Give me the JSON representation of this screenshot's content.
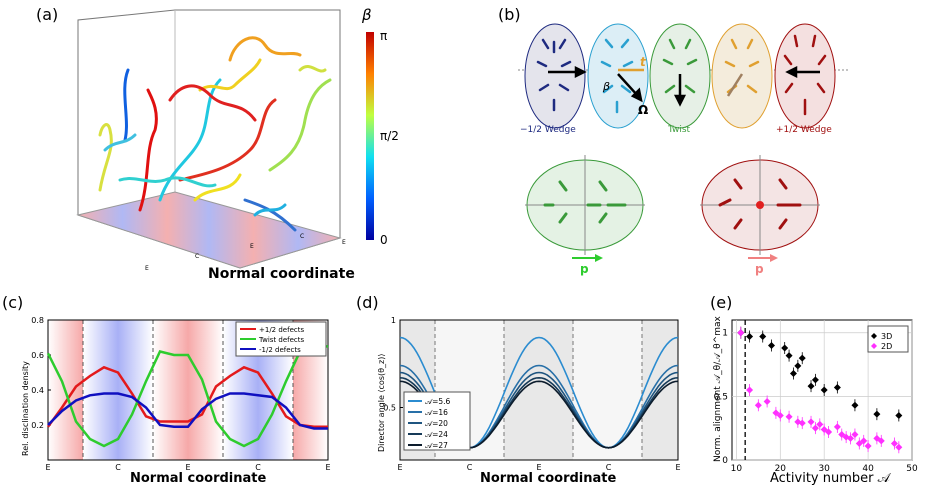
{
  "panel_labels": {
    "a": "(a)",
    "b": "(b)",
    "c": "(c)",
    "d": "(d)",
    "e": "(e)"
  },
  "panel_a": {
    "colorbar_title": "β",
    "colorbar_ticks": [
      "π",
      "π/2",
      "0"
    ],
    "xlabel": "Normal coordinate",
    "tick_labels": [
      "E",
      "C",
      "E",
      "C",
      "E"
    ],
    "colors": {
      "red": "#c00000",
      "cyan": "#18c8e0",
      "blue": "#0010a0",
      "yellow": "#f0e000"
    }
  },
  "panel_b": {
    "labels": {
      "wedge_neg": "−1/2 Wedge",
      "twist": "Twist",
      "wedge_pos": "+1/2 Wedge",
      "beta": "β",
      "t": "t",
      "omega": "Ω",
      "p1": "p",
      "p2": "p"
    },
    "colors": {
      "wedge_neg": "#1e2a80",
      "cyan": "#2aa0d0",
      "twist": "#3a9a3a",
      "orange": "#e0a030",
      "wedge_pos": "#a01010"
    }
  },
  "chart_data": [
    {
      "panel": "c",
      "type": "line",
      "ylabel": "Rel. disclination density",
      "xlabel": "Normal coordinate",
      "xticks": [
        "E",
        "C",
        "E",
        "C",
        "E"
      ],
      "yticks": [
        "0.2",
        "0.4",
        "0.6",
        "0.8"
      ],
      "ylim": [
        0,
        0.8
      ],
      "x": [
        0,
        0.05,
        0.1,
        0.15,
        0.2,
        0.25,
        0.3,
        0.35,
        0.4,
        0.45,
        0.5,
        0.55,
        0.6,
        0.65,
        0.7,
        0.75,
        0.8,
        0.85,
        0.9,
        0.95,
        1.0
      ],
      "series": [
        {
          "name": "+1/2 defects",
          "color": "#e31a1c",
          "values": [
            0.19,
            0.3,
            0.42,
            0.48,
            0.53,
            0.5,
            0.38,
            0.25,
            0.22,
            0.22,
            0.22,
            0.26,
            0.42,
            0.48,
            0.53,
            0.5,
            0.38,
            0.25,
            0.2,
            0.19,
            0.19
          ]
        },
        {
          "name": "Twist defects",
          "color": "#2ecc2e",
          "values": [
            0.61,
            0.45,
            0.22,
            0.12,
            0.08,
            0.12,
            0.26,
            0.45,
            0.62,
            0.6,
            0.6,
            0.46,
            0.22,
            0.12,
            0.08,
            0.12,
            0.26,
            0.45,
            0.62,
            0.64,
            0.65
          ]
        },
        {
          "name": "-1/2 defects",
          "color": "#1010c0",
          "values": [
            0.2,
            0.28,
            0.34,
            0.37,
            0.38,
            0.38,
            0.36,
            0.3,
            0.2,
            0.19,
            0.19,
            0.29,
            0.35,
            0.38,
            0.38,
            0.37,
            0.36,
            0.3,
            0.2,
            0.18,
            0.18
          ]
        }
      ],
      "legend": "top-right"
    },
    {
      "panel": "d",
      "type": "line",
      "ylabel": "Director angle ⟨cos(θ_z)⟩",
      "xlabel": "Normal coordinate",
      "xticks": [
        "E",
        "C",
        "E",
        "C",
        "E"
      ],
      "yticks": [
        "0.5",
        "1"
      ],
      "ylim": [
        0.2,
        1.0
      ],
      "series": [
        {
          "name": "𝒜=5.6",
          "color": "#2b8cd0",
          "amp": 0.9
        },
        {
          "name": "𝒜=16",
          "color": "#2870a8",
          "amp": 0.74
        },
        {
          "name": "𝒜=20",
          "color": "#1f5580",
          "amp": 0.7
        },
        {
          "name": "𝒜=24",
          "color": "#163a58",
          "amp": 0.67
        },
        {
          "name": "𝒜=27",
          "color": "#0c1c2c",
          "amp": 0.65
        }
      ],
      "min_value": 0.27,
      "legend": "bottom-left"
    },
    {
      "panel": "e",
      "type": "scatter",
      "ylabel": "Norm. alignment 𝒜_θ/𝒜_θ^max",
      "xlabel": "Activity number 𝒜",
      "xticks": [
        "10",
        "20",
        "30",
        "40",
        "50"
      ],
      "yticks": [
        "0",
        "0.5",
        "1"
      ],
      "xlim": [
        9,
        50
      ],
      "ylim": [
        0,
        1.1
      ],
      "series": [
        {
          "name": "3D",
          "color": "#000000",
          "points": [
            [
              11,
              1.0
            ],
            [
              13,
              0.97
            ],
            [
              16,
              0.97
            ],
            [
              18,
              0.9
            ],
            [
              21,
              0.88
            ],
            [
              22,
              0.82
            ],
            [
              23,
              0.68
            ],
            [
              24,
              0.74
            ],
            [
              25,
              0.8
            ],
            [
              27,
              0.58
            ],
            [
              28,
              0.63
            ],
            [
              30,
              0.55
            ],
            [
              33,
              0.57
            ],
            [
              37,
              0.43
            ],
            [
              42,
              0.36
            ],
            [
              47,
              0.35
            ]
          ]
        },
        {
          "name": "2D",
          "color": "#ff30ff",
          "points": [
            [
              11,
              1.0
            ],
            [
              13,
              0.55
            ],
            [
              15,
              0.43
            ],
            [
              17,
              0.46
            ],
            [
              19,
              0.37
            ],
            [
              20,
              0.35
            ],
            [
              22,
              0.34
            ],
            [
              24,
              0.3
            ],
            [
              25,
              0.29
            ],
            [
              27,
              0.3
            ],
            [
              28,
              0.25
            ],
            [
              29,
              0.28
            ],
            [
              30,
              0.24
            ],
            [
              31,
              0.22
            ],
            [
              33,
              0.26
            ],
            [
              34,
              0.2
            ],
            [
              35,
              0.18
            ],
            [
              36,
              0.17
            ],
            [
              37,
              0.2
            ],
            [
              38,
              0.13
            ],
            [
              39,
              0.15
            ],
            [
              40,
              0.11
            ],
            [
              42,
              0.17
            ],
            [
              43,
              0.15
            ],
            [
              46,
              0.13
            ],
            [
              47,
              0.1
            ]
          ]
        }
      ],
      "dashed_vline_x": 12,
      "legend": "top-right"
    }
  ]
}
